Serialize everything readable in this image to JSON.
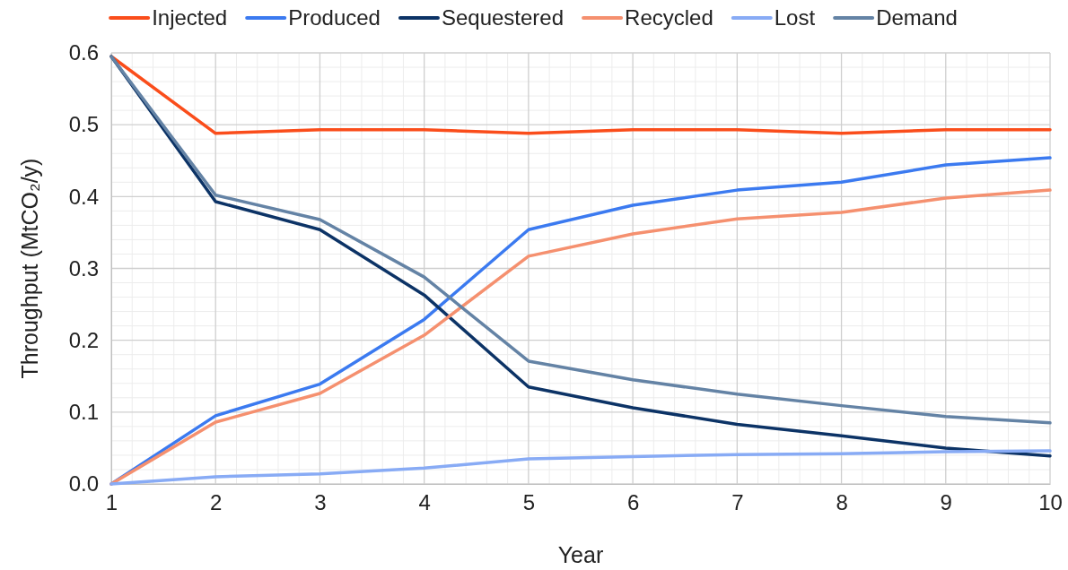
{
  "chart_data": {
    "type": "line",
    "xlabel": "Year",
    "ylabel": "Throughput (MtCO₂/y)",
    "x": [
      1,
      2,
      3,
      4,
      5,
      6,
      7,
      8,
      9,
      10
    ],
    "xlim": [
      1,
      10
    ],
    "xticks": [
      1,
      2,
      3,
      4,
      5,
      6,
      7,
      8,
      9,
      10
    ],
    "ylim": [
      0,
      0.6
    ],
    "yticks": [
      {
        "value": 0,
        "label": "0.0"
      },
      {
        "value": 0.1,
        "label": "0.1"
      },
      {
        "value": 0.2,
        "label": "0.2"
      },
      {
        "value": 0.3,
        "label": "0.3"
      },
      {
        "value": 0.4,
        "label": "0.4"
      },
      {
        "value": 0.5,
        "label": "0.5"
      },
      {
        "value": 0.6,
        "label": "0.6"
      }
    ],
    "grid": true,
    "legend": "top",
    "marker": "none",
    "line_style": "solid",
    "series": [
      {
        "name": "Injected",
        "color": "#fa4d1b",
        "values": [
          0.595,
          0.488,
          0.493,
          0.493,
          0.488,
          0.493,
          0.493,
          0.488,
          0.493,
          0.493
        ]
      },
      {
        "name": "Produced",
        "color": "#3b7af0",
        "values": [
          0,
          0.095,
          0.139,
          0.229,
          0.354,
          0.388,
          0.409,
          0.42,
          0.444,
          0.454
        ]
      },
      {
        "name": "Sequestered",
        "color": "#0c3366",
        "values": [
          0.595,
          0.393,
          0.354,
          0.263,
          0.135,
          0.106,
          0.083,
          0.067,
          0.05,
          0.039
        ]
      },
      {
        "name": "Recycled",
        "color": "#f5906f",
        "values": [
          0,
          0.086,
          0.126,
          0.207,
          0.317,
          0.348,
          0.369,
          0.378,
          0.398,
          0.409
        ]
      },
      {
        "name": "Lost",
        "color": "#88abf5",
        "values": [
          0,
          0.01,
          0.014,
          0.022,
          0.035,
          0.038,
          0.041,
          0.042,
          0.045,
          0.046
        ]
      },
      {
        "name": "Demand",
        "color": "#6483a5",
        "values": [
          0.595,
          0.402,
          0.368,
          0.288,
          0.171,
          0.145,
          0.125,
          0.109,
          0.094,
          0.085
        ]
      }
    ]
  }
}
